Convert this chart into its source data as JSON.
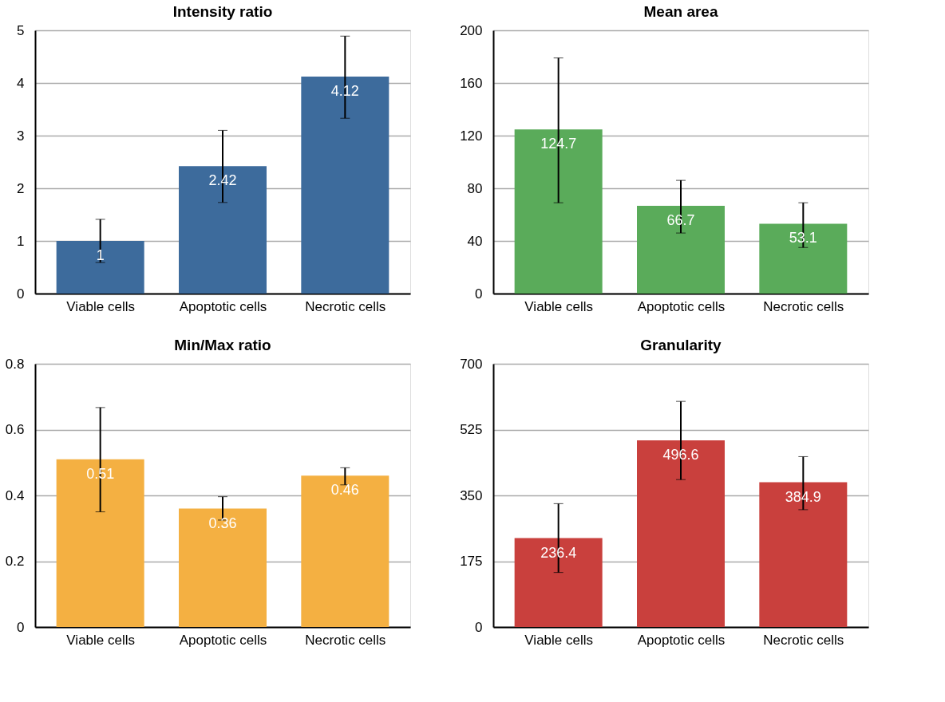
{
  "chart_data": [
    {
      "type": "bar",
      "title": "Intensity ratio",
      "categories": [
        "Viable cells",
        "Apoptotic cells",
        "Necrotic cells"
      ],
      "values": [
        1,
        2.42,
        4.12
      ],
      "color": "#3d6b9c",
      "errors": [
        [
          0.59,
          1.41
        ],
        [
          1.73,
          3.1
        ],
        [
          3.33,
          4.89
        ]
      ],
      "ylim": [
        0,
        5
      ],
      "yticks": [
        0,
        1,
        2,
        3,
        4,
        5
      ],
      "grid": "y",
      "data_labels": true
    },
    {
      "type": "bar",
      "title": "Mean area",
      "categories": [
        "Viable cells",
        "Apoptotic cells",
        "Necrotic cells"
      ],
      "values": [
        124.7,
        66.7,
        53.1
      ],
      "color": "#5aab5a",
      "errors": [
        [
          69,
          179
        ],
        [
          46,
          86
        ],
        [
          35,
          69
        ]
      ],
      "ylim": [
        0,
        200
      ],
      "yticks": [
        0,
        40,
        80,
        120,
        160,
        200
      ],
      "grid": "y",
      "data_labels": true
    },
    {
      "type": "bar",
      "title": "Min/Max ratio",
      "categories": [
        "Viable cells",
        "Apoptotic cells",
        "Necrotic cells"
      ],
      "values": [
        0.51,
        0.36,
        0.46
      ],
      "color": "#f4b042",
      "errors": [
        [
          0.35,
          0.667
        ],
        [
          0.325,
          0.396
        ],
        [
          0.432,
          0.484
        ]
      ],
      "ylim": [
        0,
        0.8
      ],
      "yticks": [
        0,
        0.2,
        0.4,
        0.6,
        0.8
      ],
      "grid": "y",
      "data_labels": true
    },
    {
      "type": "bar",
      "title": "Granularity",
      "categories": [
        "Viable cells",
        "Apoptotic cells",
        "Necrotic cells"
      ],
      "values": [
        236.4,
        496.6,
        384.9
      ],
      "color": "#c9403d",
      "errors": [
        [
          145,
          328
        ],
        [
          392,
          600
        ],
        [
          312,
          453
        ]
      ],
      "ylim": [
        0,
        700
      ],
      "yticks": [
        0,
        175,
        350,
        525,
        700
      ],
      "grid": "y",
      "data_labels": true
    }
  ]
}
